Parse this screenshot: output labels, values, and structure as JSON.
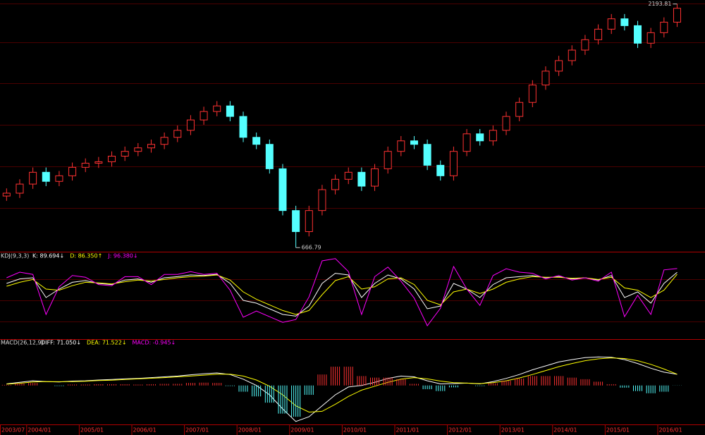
{
  "chart_data": [
    {
      "type": "candlestick",
      "categories": [
        "2003/07",
        null,
        "2004/01",
        null,
        null,
        null,
        "2005/01",
        null,
        null,
        null,
        "2006/01",
        null,
        null,
        null,
        "2007/01",
        null,
        null,
        null,
        "2008/01",
        null,
        null,
        null,
        "2009/01",
        null,
        null,
        null,
        "2010/01",
        null,
        null,
        null,
        "2011/01",
        null,
        null,
        null,
        "2012/01",
        null,
        null,
        null,
        "2013/01",
        null,
        null,
        null,
        "2014/01",
        null,
        null,
        null,
        "2015/01",
        null,
        null,
        null,
        "2016/01",
        null
      ],
      "open": [
        990,
        1008,
        1065,
        1139,
        1082,
        1117,
        1170,
        1196,
        1205,
        1240,
        1270,
        1292,
        1314,
        1358,
        1402,
        1467,
        1520,
        1555,
        1489,
        1358,
        1314,
        1161,
        899,
        767,
        899,
        1030,
        1095,
        1139,
        1052,
        1161,
        1270,
        1336,
        1314,
        1183,
        1117,
        1270,
        1380,
        1336,
        1402,
        1489,
        1577,
        1686,
        1773,
        1839,
        1905,
        1970,
        2036,
        2101,
        2058,
        1948,
        2014,
        2080
      ],
      "high": [
        1038,
        1095,
        1169,
        1169,
        1147,
        1200,
        1226,
        1235,
        1270,
        1300,
        1322,
        1344,
        1388,
        1432,
        1497,
        1550,
        1585,
        1585,
        1519,
        1388,
        1344,
        1191,
        929,
        929,
        1060,
        1125,
        1169,
        1169,
        1191,
        1300,
        1366,
        1366,
        1344,
        1213,
        1300,
        1410,
        1410,
        1432,
        1519,
        1607,
        1716,
        1803,
        1869,
        1935,
        2000,
        2066,
        2131,
        2131,
        2088,
        2044,
        2110,
        2193.81
      ],
      "low": [
        960,
        978,
        1035,
        1052,
        1052,
        1087,
        1140,
        1166,
        1175,
        1210,
        1240,
        1262,
        1284,
        1328,
        1372,
        1437,
        1490,
        1459,
        1328,
        1284,
        1131,
        869,
        666.79,
        737,
        869,
        1000,
        1065,
        1022,
        1022,
        1131,
        1240,
        1284,
        1153,
        1087,
        1087,
        1240,
        1306,
        1306,
        1372,
        1459,
        1547,
        1656,
        1743,
        1809,
        1875,
        1940,
        2006,
        2028,
        1918,
        1918,
        1984,
        2050
      ],
      "close": [
        1008,
        1065,
        1139,
        1082,
        1117,
        1170,
        1196,
        1205,
        1240,
        1270,
        1292,
        1314,
        1358,
        1402,
        1467,
        1520,
        1555,
        1489,
        1358,
        1314,
        1161,
        899,
        767,
        899,
        1030,
        1095,
        1139,
        1052,
        1161,
        1270,
        1336,
        1314,
        1183,
        1117,
        1270,
        1380,
        1336,
        1402,
        1489,
        1577,
        1686,
        1773,
        1839,
        1905,
        1970,
        2036,
        2101,
        2058,
        1948,
        2014,
        2080,
        2167
      ],
      "up_color": "#ff3232",
      "down_color": "#54ffff",
      "ylim": [
        650,
        2210
      ],
      "annotations": [
        {
          "value": 2193.81,
          "label": "2193.81"
        },
        {
          "value": 666.79,
          "label": "666.79"
        }
      ]
    },
    {
      "type": "line",
      "title": "KDJ(9,3,3)",
      "ylim": [
        -25,
        115
      ],
      "series": [
        {
          "name": "K: 89.694↓",
          "color": "#ffffff",
          "values": [
            70,
            78,
            80,
            45,
            60,
            72,
            75,
            70,
            68,
            76,
            78,
            72,
            80,
            82,
            85,
            84,
            86,
            70,
            40,
            35,
            25,
            15,
            12,
            30,
            70,
            88,
            85,
            45,
            70,
            85,
            78,
            60,
            25,
            30,
            70,
            60,
            45,
            68,
            80,
            82,
            84,
            80,
            82,
            78,
            80,
            76,
            84,
            45,
            55,
            35,
            70,
            89.694
          ]
        },
        {
          "name": "D: 86.350↑",
          "color": "#ffff00",
          "values": [
            65,
            72,
            77,
            60,
            58,
            66,
            72,
            71,
            69,
            73,
            76,
            74,
            77,
            80,
            82,
            83,
            85,
            76,
            55,
            42,
            32,
            22,
            15,
            22,
            50,
            75,
            82,
            60,
            64,
            78,
            80,
            68,
            40,
            32,
            55,
            60,
            52,
            60,
            72,
            78,
            82,
            81,
            81,
            79,
            80,
            77,
            81,
            62,
            58,
            45,
            58,
            86.35
          ]
        },
        {
          "name": "J: 96.380↓",
          "color": "#ff00ff",
          "values": [
            80,
            90,
            86,
            15,
            64,
            84,
            81,
            68,
            66,
            82,
            82,
            68,
            86,
            86,
            91,
            86,
            88,
            58,
            10,
            21,
            11,
            1,
            6,
            46,
            110,
            114,
            91,
            15,
            82,
            99,
            74,
            44,
            -5,
            26,
            100,
            60,
            31,
            84,
            96,
            90,
            88,
            78,
            84,
            76,
            80,
            74,
            90,
            11,
            49,
            15,
            94,
            96.38
          ]
        }
      ]
    },
    {
      "type": "macd",
      "title": "MACD(26,12,9)",
      "ylim": [
        -240,
        260
      ],
      "series": [
        {
          "name": "DIFF: 71.050↓",
          "color": "#ffffff",
          "values": [
            10,
            20,
            30,
            25,
            22,
            28,
            30,
            35,
            38,
            42,
            45,
            50,
            55,
            60,
            68,
            75,
            80,
            70,
            40,
            0,
            -60,
            -150,
            -230,
            -200,
            -130,
            -60,
            -10,
            0,
            20,
            45,
            60,
            55,
            30,
            10,
            12,
            15,
            10,
            25,
            45,
            70,
            100,
            125,
            150,
            165,
            178,
            182,
            180,
            165,
            140,
            110,
            85,
            71.05
          ]
        },
        {
          "name": "DEA: 71.522↓",
          "color": "#ffff00",
          "values": [
            8,
            14,
            22,
            25,
            24,
            25,
            27,
            31,
            34,
            38,
            42,
            46,
            50,
            55,
            60,
            66,
            72,
            72,
            60,
            35,
            -5,
            -60,
            -130,
            -170,
            -165,
            -120,
            -70,
            -30,
            -5,
            20,
            40,
            50,
            42,
            28,
            18,
            15,
            12,
            18,
            30,
            48,
            70,
            95,
            120,
            140,
            158,
            170,
            176,
            172,
            158,
            135,
            105,
            71.522
          ]
        },
        {
          "name": "MACD: -0.945↓",
          "color": "#ff00ff",
          "bar": true,
          "up_color": "#ff3232",
          "down_color": "#54ffff",
          "values": [
            4,
            12,
            16,
            0,
            -4,
            6,
            6,
            8,
            8,
            8,
            6,
            8,
            10,
            10,
            16,
            18,
            16,
            -4,
            -40,
            -70,
            -110,
            -180,
            -200,
            -60,
            70,
            120,
            120,
            60,
            50,
            50,
            40,
            10,
            -24,
            -36,
            -12,
            0,
            -4,
            14,
            30,
            44,
            60,
            60,
            60,
            50,
            40,
            24,
            8,
            -14,
            -36,
            -50,
            -40,
            -0.945
          ]
        }
      ]
    }
  ]
}
